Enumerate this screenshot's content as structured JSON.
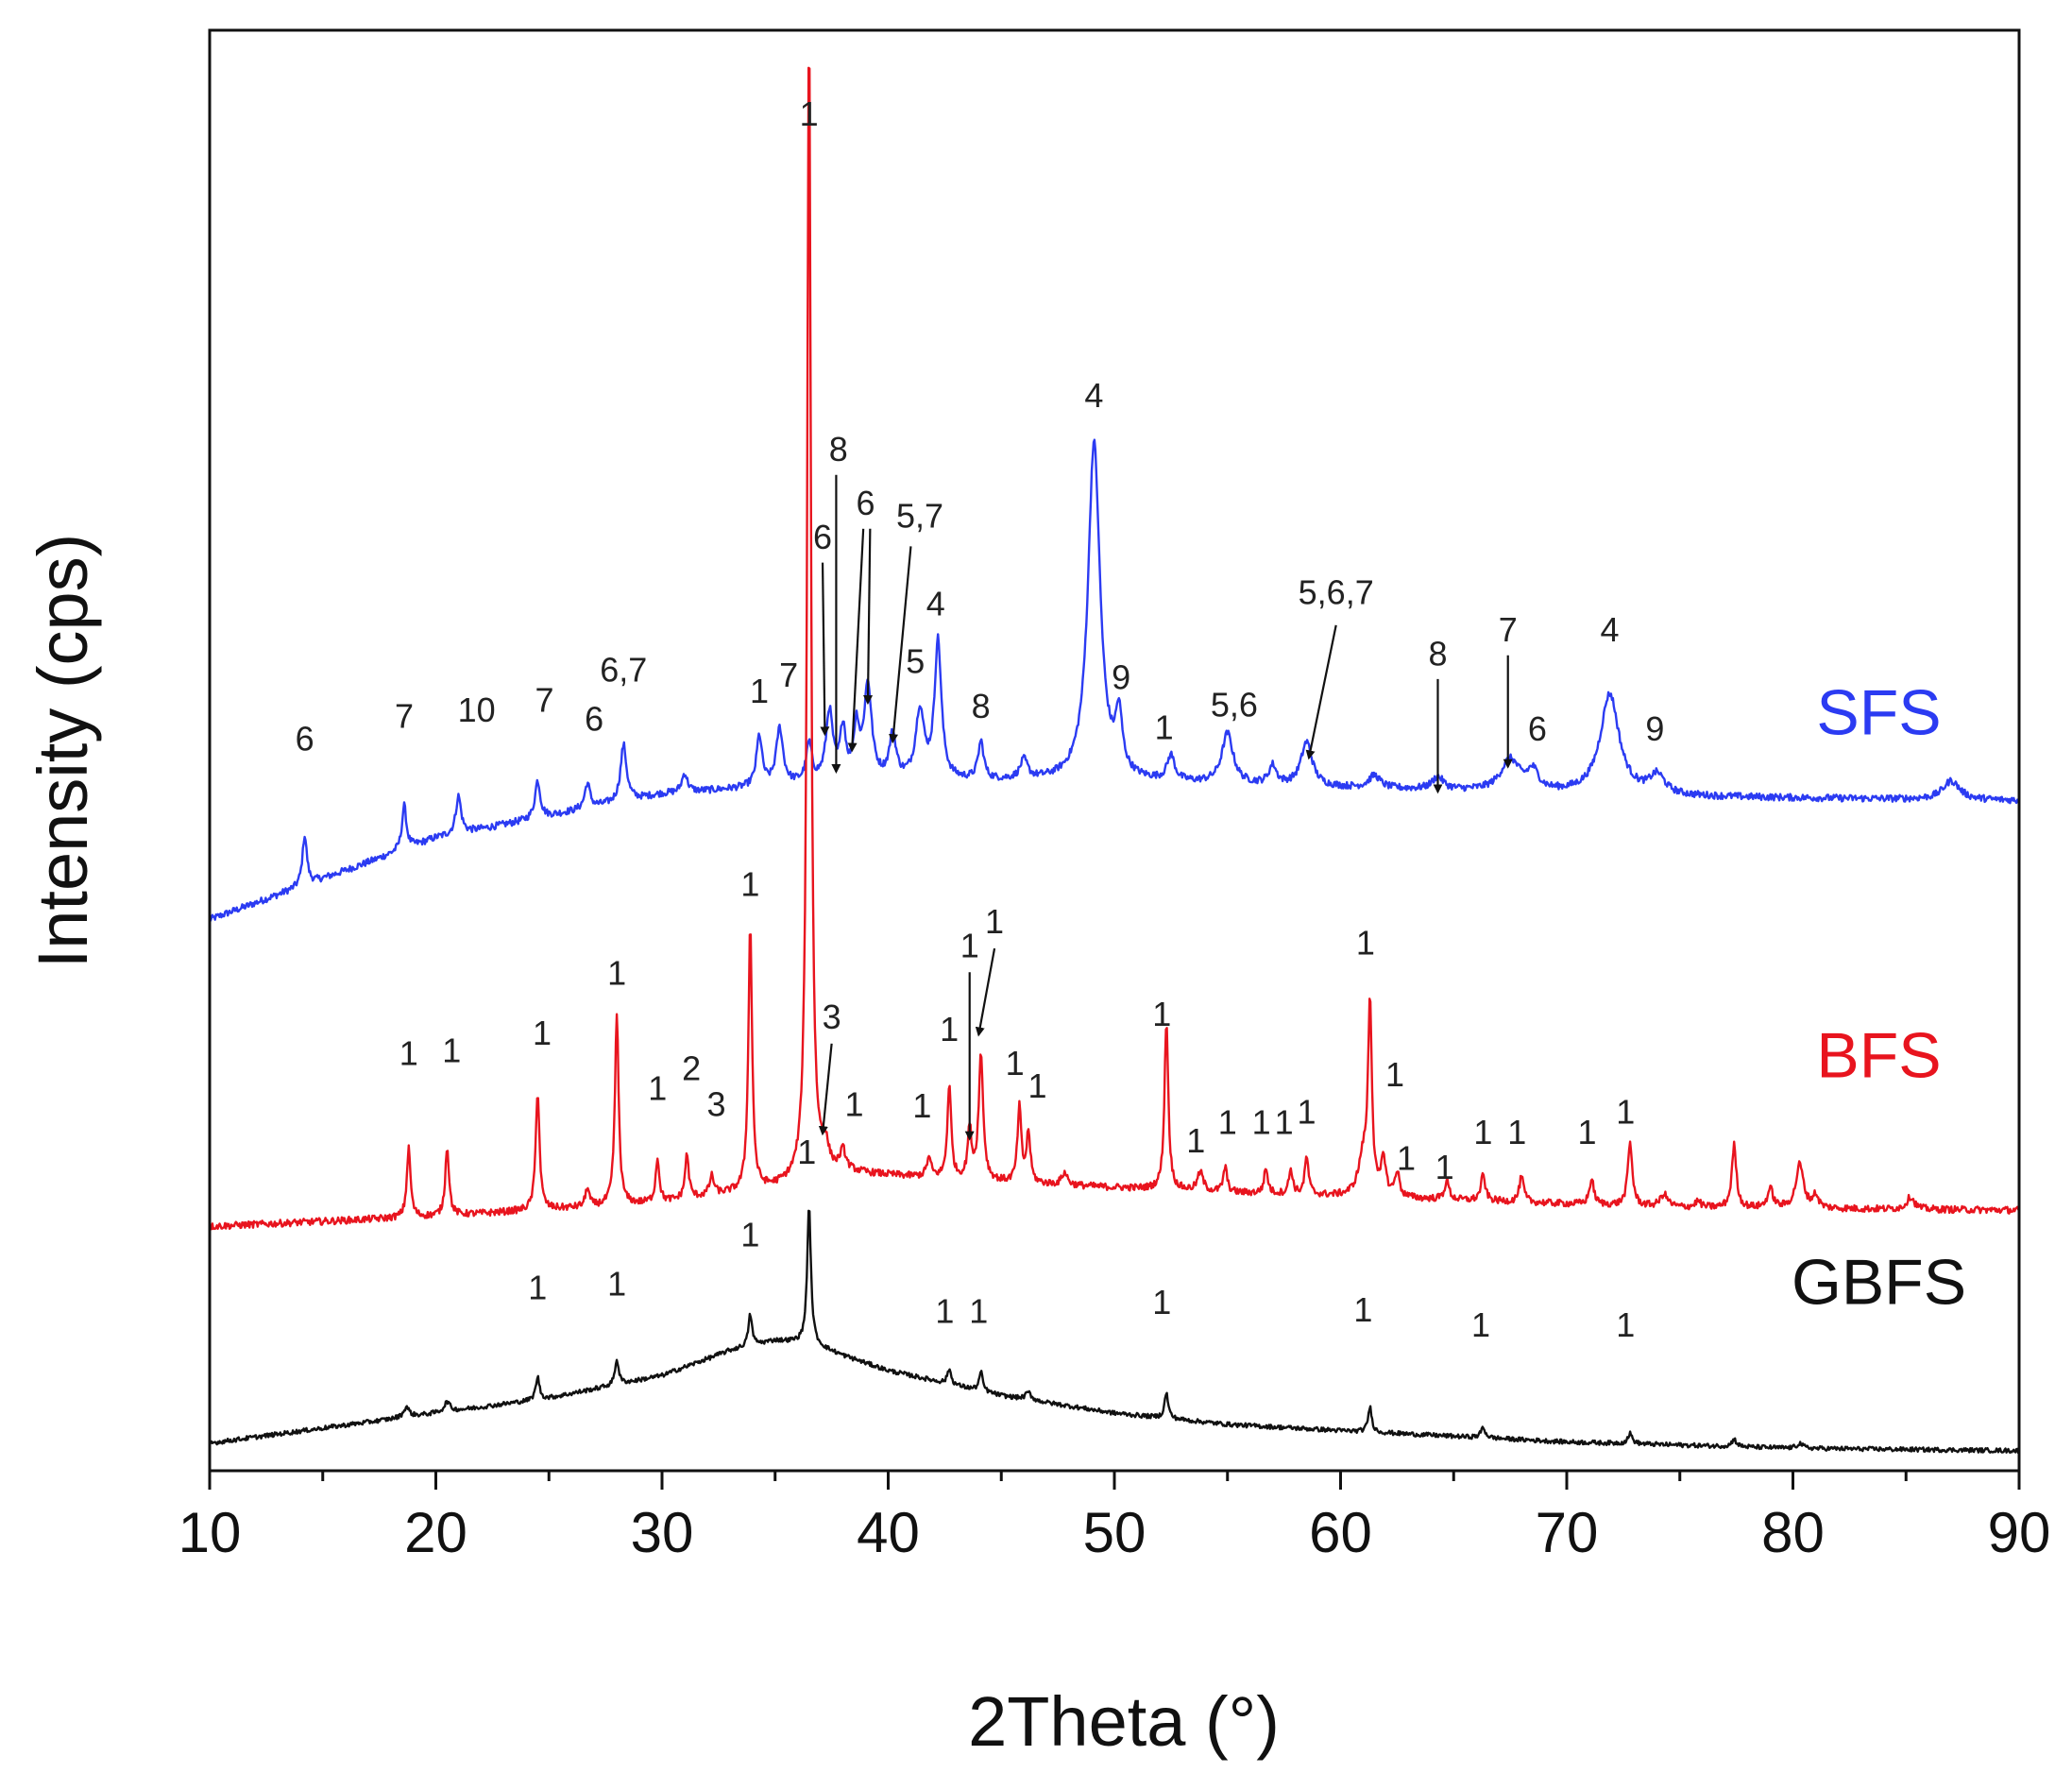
{
  "chart_data": {
    "type": "line",
    "title": "",
    "xlabel": "2Theta (°)",
    "ylabel": "Intensity (cps)",
    "xlim": [
      10,
      90
    ],
    "ylim": [
      0,
      115
    ],
    "x_ticks": [
      "10",
      "20",
      "30",
      "40",
      "50",
      "60",
      "70",
      "80",
      "90"
    ],
    "y_ticks": [],
    "grid": false,
    "legend": "labels placed at the right end of each curve",
    "series": [
      {
        "name": "SFS",
        "color": "#2b3bf2",
        "baseline": [
          [
            10,
            44
          ],
          [
            20,
            50.5
          ],
          [
            30,
            54
          ],
          [
            38,
            55
          ],
          [
            50,
            55
          ],
          [
            60,
            54.5
          ],
          [
            75,
            53.8
          ],
          [
            90,
            53.5
          ]
        ],
        "peaks": [
          [
            14.2,
            4,
            0.12
          ],
          [
            18.6,
            3.5,
            0.12
          ],
          [
            21,
            3,
            0.14
          ],
          [
            24.5,
            3,
            0.14
          ],
          [
            26.7,
            2,
            0.14
          ],
          [
            28.3,
            4.5,
            0.16
          ],
          [
            31,
            1.5,
            0.15
          ],
          [
            34.3,
            4,
            0.15
          ],
          [
            35.2,
            4.5,
            0.18
          ],
          [
            36.5,
            3,
            0.15
          ],
          [
            37.4,
            5.5,
            0.18
          ],
          [
            38,
            4,
            0.15
          ],
          [
            38.6,
            4,
            0.15
          ],
          [
            39.1,
            7.5,
            0.2
          ],
          [
            40.2,
            3.5,
            0.18
          ],
          [
            41.4,
            5.5,
            0.22
          ],
          [
            42.2,
            11,
            0.18
          ],
          [
            44.1,
            3,
            0.15
          ],
          [
            46,
            1.5,
            0.2
          ],
          [
            49.1,
            27,
            0.32
          ],
          [
            50.2,
            4.5,
            0.18
          ],
          [
            52.5,
            2,
            0.2
          ],
          [
            55,
            4,
            0.3
          ],
          [
            57,
            1.5,
            0.2
          ],
          [
            58.5,
            3.5,
            0.3
          ],
          [
            61.5,
            1,
            0.3
          ],
          [
            64.3,
            1,
            0.3
          ],
          [
            67.5,
            2.5,
            0.5
          ],
          [
            68.5,
            1.5,
            0.3
          ],
          [
            71.9,
            8,
            0.5
          ],
          [
            74,
            1.5,
            0.4
          ],
          [
            87,
            1.5,
            0.45
          ]
        ],
        "labels": [
          {
            "text": "6",
            "x": 14.2,
            "y": 57.5
          },
          {
            "text": "7",
            "x": 18.6,
            "y": 59.3
          },
          {
            "text": "10",
            "x": 21.8,
            "y": 59.8
          },
          {
            "text": "7",
            "x": 24.8,
            "y": 60.6
          },
          {
            "text": "6",
            "x": 27,
            "y": 59.1
          },
          {
            "text": "6,7",
            "x": 28.3,
            "y": 63
          },
          {
            "text": "1",
            "x": 34.3,
            "y": 61.3
          },
          {
            "text": "7",
            "x": 35.6,
            "y": 62.6
          },
          {
            "text": "1",
            "x": 36.5,
            "y": 107.4
          },
          {
            "text": "8",
            "x": 37.8,
            "y": 80.6
          },
          {
            "text": "6",
            "x": 37.1,
            "y": 73.6
          },
          {
            "text": "6",
            "x": 39,
            "y": 76.3
          },
          {
            "text": "5,7",
            "x": 41.4,
            "y": 75.3
          },
          {
            "text": "5",
            "x": 41.2,
            "y": 63.7
          },
          {
            "text": "4",
            "x": 42.1,
            "y": 68.3
          },
          {
            "text": "8",
            "x": 44.1,
            "y": 60.1
          },
          {
            "text": "4",
            "x": 49.1,
            "y": 84.9
          },
          {
            "text": "9",
            "x": 50.3,
            "y": 62.4
          },
          {
            "text": "1",
            "x": 52.2,
            "y": 58.4
          },
          {
            "text": "5,6",
            "x": 55.3,
            "y": 60.2
          },
          {
            "text": "5,6,7",
            "x": 59.8,
            "y": 69.2
          },
          {
            "text": "8",
            "x": 64.3,
            "y": 64.3
          },
          {
            "text": "7",
            "x": 67.4,
            "y": 66.2
          },
          {
            "text": "6",
            "x": 68.7,
            "y": 58.3
          },
          {
            "text": "4",
            "x": 71.9,
            "y": 66.2
          },
          {
            "text": "9",
            "x": 73.9,
            "y": 58.3
          }
        ],
        "arrows": [
          {
            "from": [
              37.7,
              79.5
            ],
            "to": [
              37.7,
              55.8
            ]
          },
          {
            "from": [
              37.1,
              72.5
            ],
            "to": [
              37.2,
              58.8
            ]
          },
          {
            "from": [
              38.9,
              75.2
            ],
            "to": [
              38.4,
              57.5
            ]
          },
          {
            "from": [
              39.2,
              75.2
            ],
            "to": [
              39.1,
              61.3
            ]
          },
          {
            "from": [
              41,
              73.8
            ],
            "to": [
              40.2,
              58.2
            ]
          },
          {
            "from": [
              59.8,
              67.5
            ],
            "to": [
              58.6,
              56.9
            ]
          },
          {
            "from": [
              64.3,
              63.2
            ],
            "to": [
              64.3,
              54.2
            ]
          },
          {
            "from": [
              67.4,
              65.1
            ],
            "to": [
              67.4,
              56.2
            ]
          }
        ]
      },
      {
        "name": "BFS",
        "color": "#e8141e",
        "baseline": [
          [
            10,
            19.5
          ],
          [
            20,
            20.3
          ],
          [
            30,
            21.4
          ],
          [
            35,
            22.6
          ],
          [
            38,
            23.8
          ],
          [
            45,
            23
          ],
          [
            55,
            22.2
          ],
          [
            65,
            21.6
          ],
          [
            75,
            21
          ],
          [
            90,
            20.8
          ]
        ],
        "peaks": [
          [
            18.8,
            5.5,
            0.1
          ],
          [
            20.5,
            5.5,
            0.1
          ],
          [
            24.5,
            9.5,
            0.1
          ],
          [
            26.7,
            1.5,
            0.1
          ],
          [
            28,
            15,
            0.1
          ],
          [
            29.8,
            3.5,
            0.1
          ],
          [
            31.1,
            3.5,
            0.1
          ],
          [
            32.2,
            1.5,
            0.12
          ],
          [
            33.9,
            21,
            0.1
          ],
          [
            36.5,
            92,
            0.1
          ],
          [
            37.2,
            2,
            0.2
          ],
          [
            38,
            1.5,
            0.15
          ],
          [
            41.8,
            1.5,
            0.12
          ],
          [
            42.7,
            7.5,
            0.1
          ],
          [
            43.6,
            4,
            0.1
          ],
          [
            44.1,
            10,
            0.12
          ],
          [
            45.8,
            6,
            0.1
          ],
          [
            46.2,
            4,
            0.1
          ],
          [
            47.8,
            1,
            0.15
          ],
          [
            52.3,
            13.5,
            0.1
          ],
          [
            53.8,
            1.5,
            0.15
          ],
          [
            54.9,
            2,
            0.1
          ],
          [
            56.7,
            2,
            0.1
          ],
          [
            57.8,
            2,
            0.1
          ],
          [
            58.5,
            3,
            0.1
          ],
          [
            61,
            3,
            0.25
          ],
          [
            61.3,
            15,
            0.1
          ],
          [
            61.9,
            3,
            0.12
          ],
          [
            62.5,
            2,
            0.12
          ],
          [
            64.7,
            1.5,
            0.12
          ],
          [
            66.3,
            2,
            0.12
          ],
          [
            68,
            2,
            0.12
          ],
          [
            71.1,
            2,
            0.12
          ],
          [
            72.8,
            5,
            0.12
          ],
          [
            74.3,
            1,
            0.2
          ],
          [
            75.8,
            0.5,
            0.15
          ],
          [
            77.4,
            5,
            0.12
          ],
          [
            79,
            1.5,
            0.15
          ],
          [
            80.3,
            3.5,
            0.2
          ],
          [
            81,
            1,
            0.15
          ],
          [
            85.2,
            1,
            0.2
          ]
        ],
        "labels": [
          {
            "text": "1",
            "x": 18.8,
            "y": 32.4
          },
          {
            "text": "1",
            "x": 20.7,
            "y": 32.6
          },
          {
            "text": "1",
            "x": 24.7,
            "y": 34
          },
          {
            "text": "1",
            "x": 28,
            "y": 38.8
          },
          {
            "text": "1",
            "x": 29.8,
            "y": 29.6
          },
          {
            "text": "2",
            "x": 31.3,
            "y": 31.2
          },
          {
            "text": "3",
            "x": 32.4,
            "y": 28.3
          },
          {
            "text": "1",
            "x": 33.9,
            "y": 45.9
          },
          {
            "text": "3",
            "x": 37.5,
            "y": 35.3
          },
          {
            "text": "1",
            "x": 38.5,
            "y": 28.3
          },
          {
            "text": "1",
            "x": 41.5,
            "y": 28.2
          },
          {
            "text": "1",
            "x": 42.7,
            "y": 34.3
          },
          {
            "text": "1",
            "x": 43.6,
            "y": 41
          },
          {
            "text": "1",
            "x": 44.7,
            "y": 42.9
          },
          {
            "text": "1",
            "x": 45.6,
            "y": 31.6
          },
          {
            "text": "1",
            "x": 46.6,
            "y": 29.8
          },
          {
            "text": "1",
            "x": 52.1,
            "y": 35.5
          },
          {
            "text": "1",
            "x": 53.6,
            "y": 25.4
          },
          {
            "text": "1",
            "x": 55,
            "y": 26.9
          },
          {
            "text": "1",
            "x": 56.5,
            "y": 26.9
          },
          {
            "text": "1",
            "x": 57.5,
            "y": 26.9
          },
          {
            "text": "1",
            "x": 58.5,
            "y": 27.7
          },
          {
            "text": "1",
            "x": 61.1,
            "y": 41.2
          },
          {
            "text": "1",
            "x": 62.4,
            "y": 30.7
          },
          {
            "text": "1",
            "x": 62.9,
            "y": 24
          },
          {
            "text": "1",
            "x": 64.6,
            "y": 23.3
          },
          {
            "text": "1",
            "x": 66.3,
            "y": 26.1
          },
          {
            "text": "1",
            "x": 67.8,
            "y": 26.1
          },
          {
            "text": "1",
            "x": 70.9,
            "y": 26.1
          },
          {
            "text": "1",
            "x": 72.6,
            "y": 27.7
          }
        ],
        "arrows": [
          {
            "from": [
              37.5,
              34.1
            ],
            "to": [
              37.1,
              26.9
            ]
          },
          {
            "from": [
              43.6,
              39.8
            ],
            "to": [
              43.6,
              26.5
            ]
          },
          {
            "from": [
              44.7,
              41.7
            ],
            "to": [
              44,
              34.8
            ]
          }
        ]
      },
      {
        "name": "GBFS",
        "color": "#111111",
        "baseline": [
          [
            10,
            2.2
          ],
          [
            20,
            4.6
          ],
          [
            25,
            5.8
          ],
          [
            30,
            7.6
          ],
          [
            33,
            9.6
          ],
          [
            35,
            10.4
          ],
          [
            36.5,
            10.2
          ],
          [
            38,
            9.2
          ],
          [
            40,
            8
          ],
          [
            45,
            6
          ],
          [
            50,
            4.6
          ],
          [
            55,
            3.7
          ],
          [
            60,
            3.2
          ],
          [
            70,
            2.3
          ],
          [
            80,
            1.8
          ],
          [
            90,
            1.6
          ]
        ],
        "peaks": [
          [
            18.7,
            0.8,
            0.15
          ],
          [
            20.5,
            0.8,
            0.15
          ],
          [
            24.5,
            1.8,
            0.1
          ],
          [
            28,
            2,
            0.1
          ],
          [
            33.9,
            2.5,
            0.1
          ],
          [
            36.5,
            10.8,
            0.1
          ],
          [
            42.7,
            1.2,
            0.1
          ],
          [
            44.1,
            1.5,
            0.1
          ],
          [
            46.2,
            0.6,
            0.15
          ],
          [
            52.3,
            2,
            0.1
          ],
          [
            61.3,
            2,
            0.1
          ],
          [
            66.3,
            0.8,
            0.12
          ],
          [
            72.8,
            0.8,
            0.12
          ],
          [
            77.4,
            0.6,
            0.12
          ],
          [
            80.3,
            0.4,
            0.15
          ]
        ],
        "labels": [
          {
            "text": "1",
            "x": 36.4,
            "y": 24.5
          },
          {
            "text": "1",
            "x": 24.5,
            "y": 13.7
          },
          {
            "text": "1",
            "x": 28,
            "y": 14
          },
          {
            "text": "1",
            "x": 33.9,
            "y": 17.9
          },
          {
            "text": "1",
            "x": 42.5,
            "y": 11.8
          },
          {
            "text": "1",
            "x": 44,
            "y": 11.8
          },
          {
            "text": "1",
            "x": 52.1,
            "y": 12.5
          },
          {
            "text": "1",
            "x": 61,
            "y": 11.9
          },
          {
            "text": "1",
            "x": 66.2,
            "y": 10.7
          },
          {
            "text": "1",
            "x": 72.6,
            "y": 10.7
          }
        ],
        "arrows": []
      }
    ],
    "series_labels": [
      {
        "text": "SFS",
        "x": 83.8,
        "y": 58.8
      },
      {
        "text": "BFS",
        "x": 83.8,
        "y": 31.4
      },
      {
        "text": "GBFS",
        "x": 83.8,
        "y": 13.3
      }
    ]
  }
}
